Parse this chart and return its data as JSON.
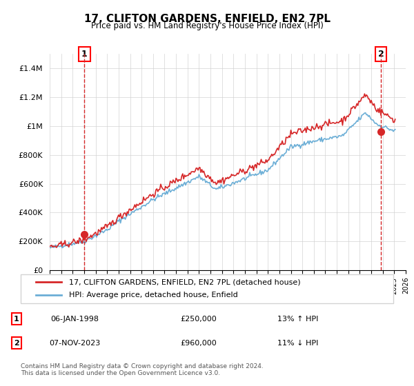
{
  "title": "17, CLIFTON GARDENS, ENFIELD, EN2 7PL",
  "subtitle": "Price paid vs. HM Land Registry's House Price Index (HPI)",
  "legend_line1": "17, CLIFTON GARDENS, ENFIELD, EN2 7PL (detached house)",
  "legend_line2": "HPI: Average price, detached house, Enfield",
  "footnote": "Contains HM Land Registry data © Crown copyright and database right 2024.\nThis data is licensed under the Open Government Licence v3.0.",
  "annotation1_label": "1",
  "annotation1_date": "06-JAN-1998",
  "annotation1_price": "£250,000",
  "annotation1_hpi": "13% ↑ HPI",
  "annotation2_label": "2",
  "annotation2_date": "07-NOV-2023",
  "annotation2_price": "£960,000",
  "annotation2_hpi": "11% ↓ HPI",
  "hpi_color": "#6baed6",
  "price_color": "#d62728",
  "dashed_color": "#d62728",
  "ylim": [
    0,
    1500000
  ],
  "yticks": [
    0,
    200000,
    400000,
    600000,
    800000,
    1000000,
    1200000,
    1400000
  ],
  "ytick_labels": [
    "£0",
    "£200K",
    "£400K",
    "£600K",
    "£800K",
    "£1M",
    "£1.2M",
    "£1.4M"
  ],
  "sale1_year": 1998.03,
  "sale1_value": 250000,
  "sale2_year": 2023.85,
  "sale2_value": 960000,
  "xmin": 1995,
  "xmax": 2026
}
